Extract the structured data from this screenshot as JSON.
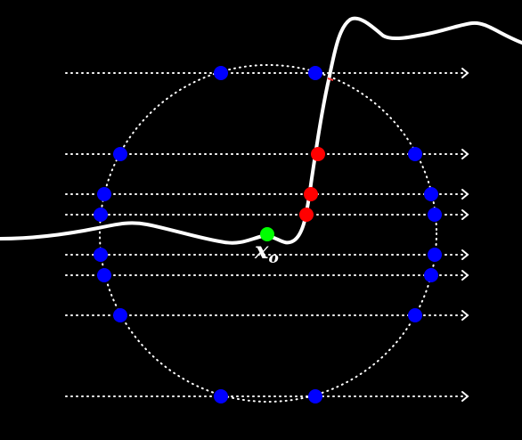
{
  "diagram": {
    "point_label": {
      "base": "x",
      "subscript": "o"
    },
    "colors": {
      "background": "#000000",
      "curve": "#ffffff",
      "circle": "#ffffff",
      "rays": "#ffffff",
      "boundary_points": "#0000ff",
      "intersection_points": "#ff0000",
      "origin_point": "#00ff00"
    }
  }
}
